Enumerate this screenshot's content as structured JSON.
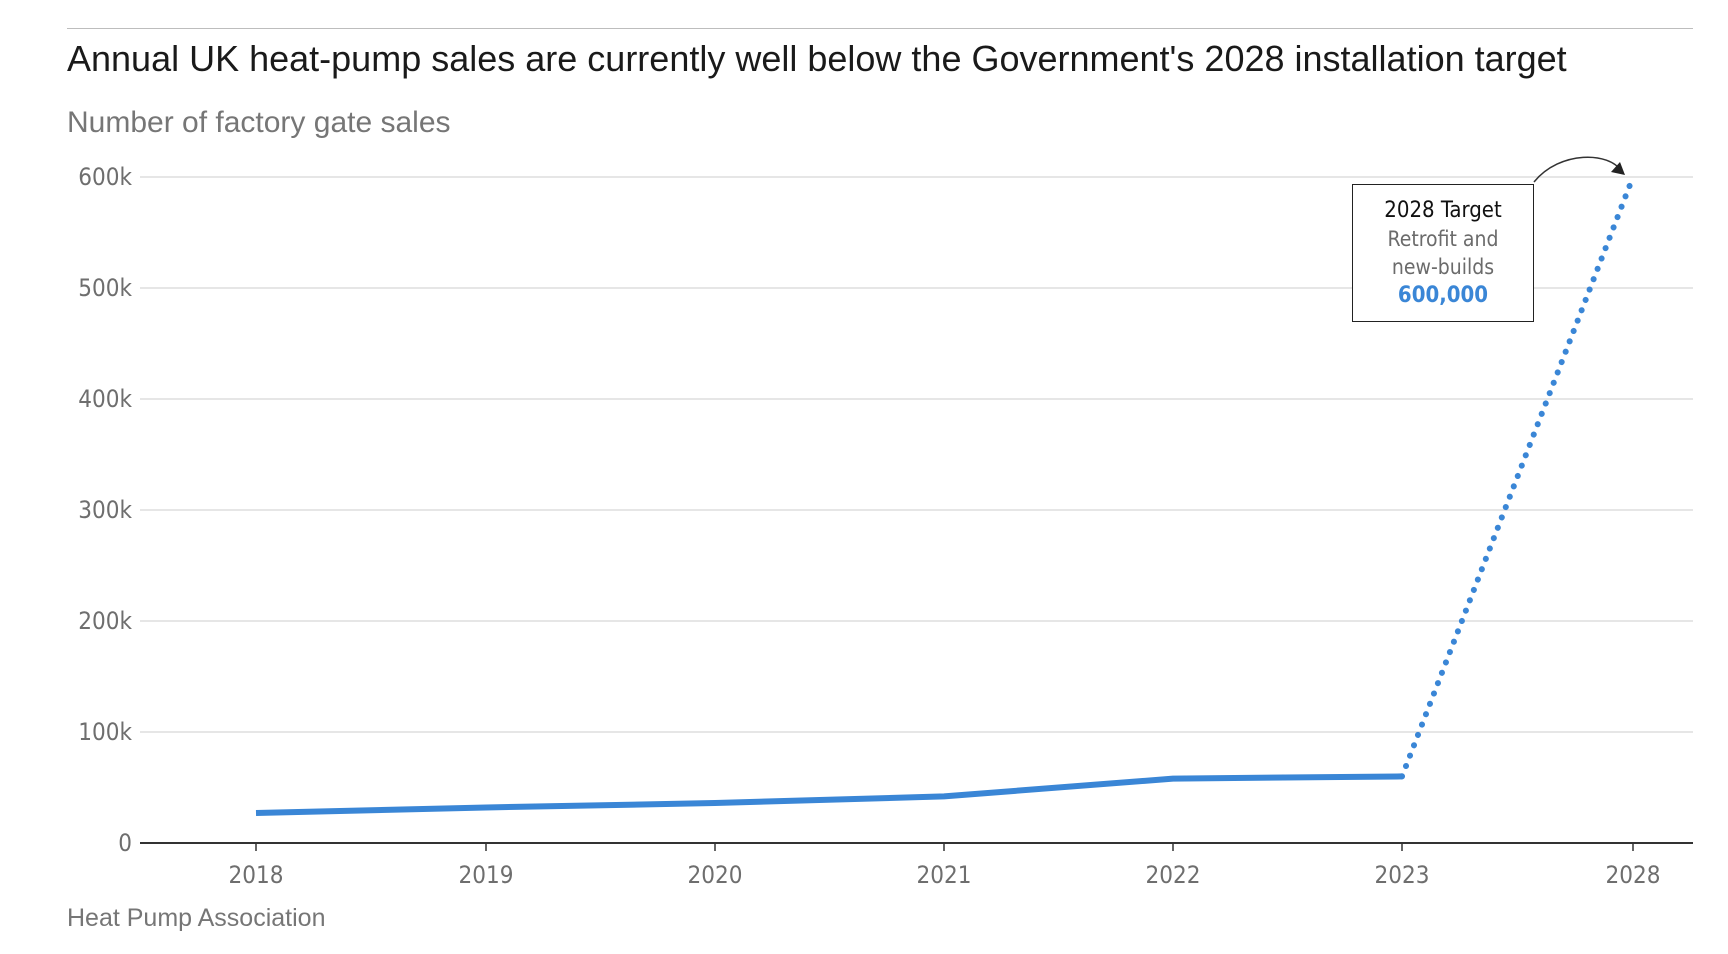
{
  "title": "Annual UK heat-pump sales are currently well below the Government's 2028 installation target",
  "subtitle": "Number of factory gate sales",
  "source": "Heat Pump Association",
  "annotation": {
    "heading": "2028 Target",
    "line1": "Retrofit and",
    "line2": "new-builds",
    "value": "600,000"
  },
  "colors": {
    "series": "#3a86d6",
    "grid": "#dedede",
    "axis": "#333333"
  },
  "chart_data": {
    "type": "line",
    "title": "Annual UK heat-pump sales are currently well below the Government's 2028 installation target",
    "ylabel": "Number of factory gate sales",
    "xlabel": "",
    "ylim": [
      0,
      600000
    ],
    "yticks": [
      0,
      100000,
      200000,
      300000,
      400000,
      500000,
      600000
    ],
    "ytick_labels": [
      "0",
      "100k",
      "200k",
      "300k",
      "400k",
      "500k",
      "600k"
    ],
    "x_categories": [
      "2018",
      "2019",
      "2020",
      "2021",
      "2022",
      "2023",
      "2028"
    ],
    "grid": true,
    "series": [
      {
        "style": "solid",
        "x": [
          "2018",
          "2019",
          "2020",
          "2021",
          "2022",
          "2023"
        ],
        "values": [
          27000,
          32000,
          36000,
          42000,
          58000,
          60000
        ]
      },
      {
        "style": "dotted",
        "x": [
          "2023",
          "2028"
        ],
        "values": [
          60000,
          600000
        ]
      }
    ]
  }
}
